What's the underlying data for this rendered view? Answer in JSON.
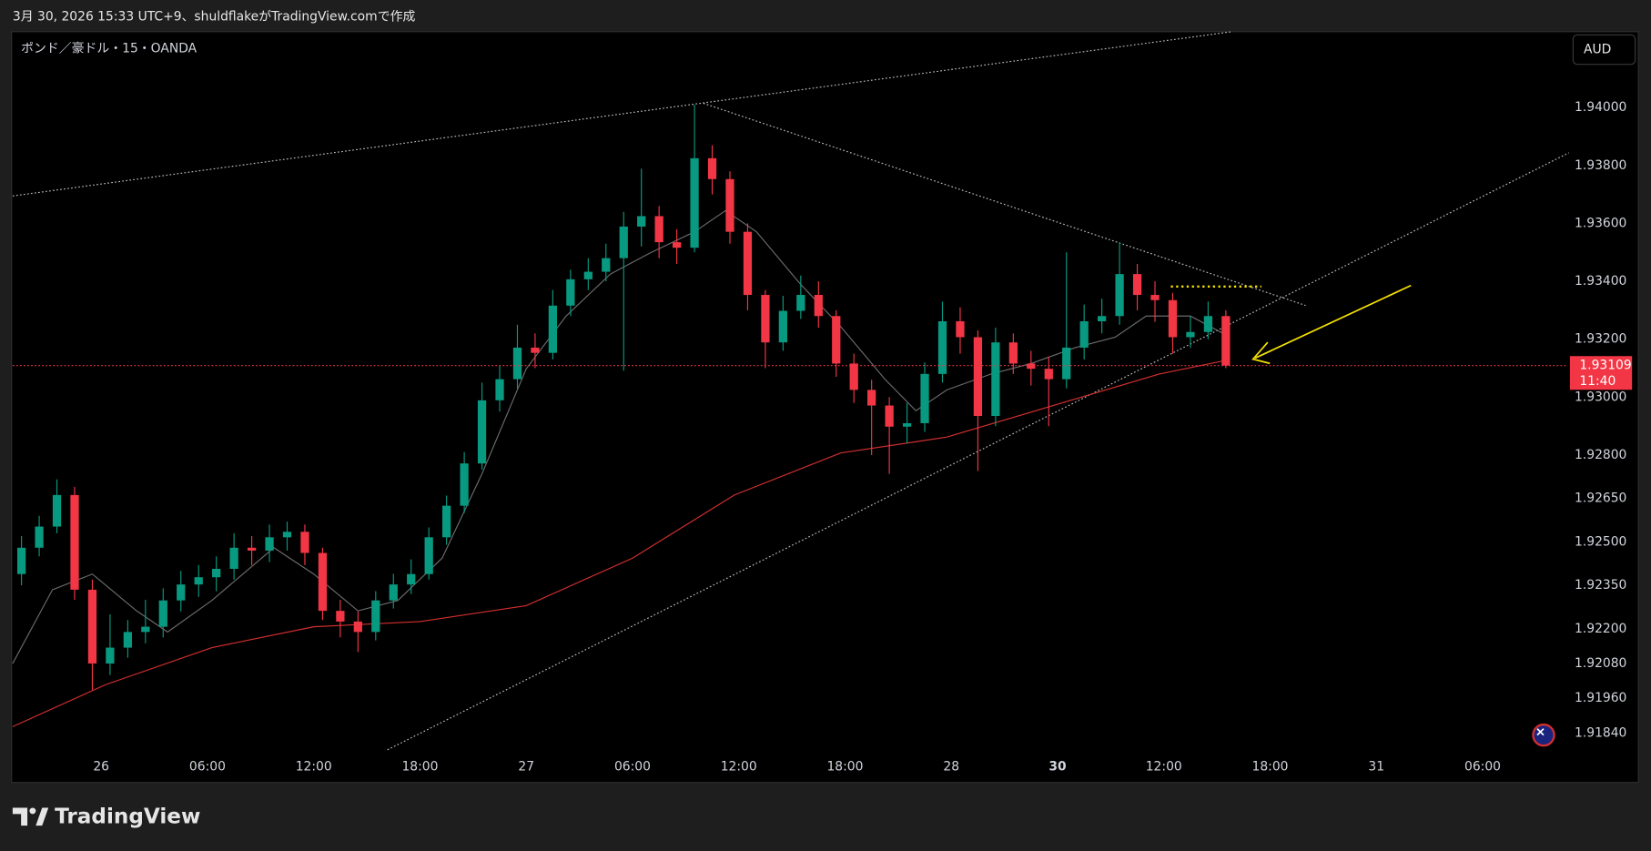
{
  "header": {
    "caption": "3月 30, 2026 15:33 UTC+9、shuldflakeがTradingView.comで作成"
  },
  "footer": {
    "brand": "TradingView"
  },
  "chart_data": {
    "type": "candlestick",
    "title": "ポンド／豪ドル・15・OANDA",
    "currency": "AUD",
    "up_color": "#089981",
    "down_color": "#f23645",
    "grid": false,
    "xlim": [
      0,
      351
    ],
    "ylim": [
      1.91673,
      1.94262
    ],
    "xticks": [
      {
        "value": 20,
        "label": "26"
      },
      {
        "value": 44,
        "label": "06:00"
      },
      {
        "value": 68,
        "label": "12:00"
      },
      {
        "value": 92,
        "label": "18:00"
      },
      {
        "value": 116,
        "label": "27"
      },
      {
        "value": 140,
        "label": "06:00"
      },
      {
        "value": 164,
        "label": "12:00"
      },
      {
        "value": 188,
        "label": "18:00"
      },
      {
        "value": 212,
        "label": "28"
      },
      {
        "value": 236,
        "label": "30",
        "bold": true
      },
      {
        "value": 260,
        "label": "12:00"
      },
      {
        "value": 284,
        "label": "18:00"
      },
      {
        "value": 308,
        "label": "31"
      },
      {
        "value": 332,
        "label": "06:00"
      }
    ],
    "yticks": [
      {
        "value": 1.94,
        "label": "1.94000"
      },
      {
        "value": 1.938,
        "label": "1.93800"
      },
      {
        "value": 1.936,
        "label": "1.93600"
      },
      {
        "value": 1.934,
        "label": "1.93400"
      },
      {
        "value": 1.932,
        "label": "1.93200"
      },
      {
        "value": 1.93,
        "label": "1.93000"
      },
      {
        "value": 1.928,
        "label": "1.92800"
      },
      {
        "value": 1.9265,
        "label": "1.92650"
      },
      {
        "value": 1.925,
        "label": "1.92500"
      },
      {
        "value": 1.9235,
        "label": "1.92350"
      },
      {
        "value": 1.922,
        "label": "1.92200"
      },
      {
        "value": 1.9208,
        "label": "1.92080"
      },
      {
        "value": 1.9196,
        "label": "1.91960"
      },
      {
        "value": 1.9184,
        "label": "1.91840"
      }
    ],
    "x": [
      2,
      6,
      10,
      14,
      18,
      22,
      26,
      30,
      34,
      38,
      42,
      46,
      50,
      54,
      58,
      62,
      66,
      70,
      74,
      78,
      82,
      86,
      90,
      94,
      98,
      102,
      106,
      110,
      114,
      118,
      122,
      126,
      130,
      134,
      138,
      142,
      146,
      150,
      154,
      158,
      162,
      166,
      170,
      174,
      178,
      182,
      186,
      190,
      194,
      198,
      202,
      206,
      210,
      214,
      218,
      222,
      226,
      230,
      234,
      238,
      242,
      246,
      250,
      254,
      258,
      262,
      266,
      270,
      274
    ],
    "open": [
      1.92389,
      1.9248,
      1.92553,
      1.92662,
      1.92335,
      1.9208,
      1.92135,
      1.92189,
      1.92207,
      1.92298,
      1.92353,
      1.92378,
      1.92407,
      1.9248,
      1.9247,
      1.92516,
      1.92535,
      1.92462,
      1.92262,
      1.92225,
      1.92189,
      1.92298,
      1.92353,
      1.92389,
      1.92516,
      1.92625,
      1.92771,
      1.92989,
      1.93062,
      1.93171,
      1.93153,
      1.93316,
      1.93407,
      1.93433,
      1.9348,
      1.93589,
      1.93625,
      1.93535,
      1.93516,
      1.93825,
      1.93753,
      1.93571,
      1.93353,
      1.93189,
      1.93298,
      1.93353,
      1.9328,
      1.93116,
      1.93025,
      1.92971,
      1.92898,
      1.9291,
      1.9308,
      1.93262,
      1.93207,
      1.92935,
      1.93189,
      1.93116,
      1.93098,
      1.93062,
      1.93171,
      1.93262,
      1.9328,
      1.93425,
      1.93353,
      1.93335,
      1.93207,
      1.93225,
      1.9328
    ],
    "high": [
      1.9252,
      1.9259,
      1.92716,
      1.9269,
      1.9237,
      1.9225,
      1.9223,
      1.923,
      1.9234,
      1.924,
      1.9242,
      1.9245,
      1.9253,
      1.9252,
      1.9256,
      1.9257,
      1.9256,
      1.9248,
      1.923,
      1.9226,
      1.9233,
      1.9239,
      1.9244,
      1.9255,
      1.9266,
      1.9281,
      1.9305,
      1.9311,
      1.9325,
      1.9322,
      1.9337,
      1.9344,
      1.9348,
      1.9353,
      1.9364,
      1.93789,
      1.9366,
      1.9358,
      1.9401,
      1.9387,
      1.9378,
      1.936,
      1.9337,
      1.9335,
      1.9342,
      1.934,
      1.933,
      1.9315,
      1.9306,
      1.93,
      1.9298,
      1.9312,
      1.9333,
      1.9331,
      1.9323,
      1.9324,
      1.9322,
      1.9316,
      1.9314,
      1.935,
      1.9332,
      1.9334,
      1.93535,
      1.9346,
      1.934,
      1.9336,
      1.9328,
      1.9333,
      1.933
    ],
    "low": [
      1.9235,
      1.9245,
      1.9253,
      1.923,
      1.91989,
      1.9204,
      1.921,
      1.9215,
      1.9217,
      1.9226,
      1.9231,
      1.9233,
      1.9237,
      1.9242,
      1.9243,
      1.9247,
      1.9242,
      1.9223,
      1.9217,
      1.9212,
      1.9216,
      1.9227,
      1.9232,
      1.9237,
      1.9249,
      1.926,
      1.9275,
      1.9295,
      1.9303,
      1.931,
      1.9313,
      1.9328,
      1.9337,
      1.934,
      1.93091,
      1.9352,
      1.9348,
      1.9346,
      1.935,
      1.937,
      1.9353,
      1.933,
      1.931,
      1.9316,
      1.9327,
      1.9324,
      1.9307,
      1.9298,
      1.928,
      1.92735,
      1.9284,
      1.9288,
      1.9305,
      1.9315,
      1.92745,
      1.929,
      1.9308,
      1.9304,
      1.929,
      1.9303,
      1.9313,
      1.9322,
      1.9325,
      1.933,
      1.9326,
      1.9315,
      1.9317,
      1.932,
      1.931
    ],
    "close": [
      1.9248,
      1.92553,
      1.92662,
      1.92335,
      1.9208,
      1.92135,
      1.92189,
      1.92207,
      1.92298,
      1.92353,
      1.92378,
      1.92407,
      1.9248,
      1.9247,
      1.92516,
      1.92535,
      1.92462,
      1.92262,
      1.92225,
      1.92189,
      1.92298,
      1.92353,
      1.92389,
      1.92516,
      1.92625,
      1.92771,
      1.92989,
      1.93062,
      1.93171,
      1.93153,
      1.93316,
      1.93407,
      1.93433,
      1.9348,
      1.93589,
      1.93625,
      1.93535,
      1.93516,
      1.93825,
      1.93753,
      1.93571,
      1.93353,
      1.93189,
      1.93298,
      1.93353,
      1.9328,
      1.93116,
      1.93025,
      1.92971,
      1.92898,
      1.9291,
      1.9308,
      1.93262,
      1.93207,
      1.92935,
      1.93189,
      1.93116,
      1.93098,
      1.93062,
      1.93171,
      1.93262,
      1.9328,
      1.93425,
      1.93353,
      1.93335,
      1.93207,
      1.93225,
      1.9328,
      1.93109
    ],
    "overlays": [
      {
        "color": "#6b6b6b",
        "x": [
          0,
          9,
          18,
          28,
          35,
          45,
          59,
          68,
          78,
          87,
          97,
          106,
          116,
          125,
          135,
          144,
          154,
          161,
          168,
          178,
          187,
          197,
          204,
          211,
          221,
          230,
          240,
          249,
          256,
          266,
          274
        ],
        "values": [
          1.9208,
          1.92335,
          1.92389,
          1.92262,
          1.92189,
          1.92298,
          1.9248,
          1.92389,
          1.92262,
          1.92298,
          1.92444,
          1.92735,
          1.93098,
          1.9328,
          1.93425,
          1.93498,
          1.93571,
          1.93644,
          1.93571,
          1.93389,
          1.93244,
          1.93062,
          1.92953,
          1.93025,
          1.9308,
          1.93116,
          1.93171,
          1.93207,
          1.9328,
          1.9328,
          1.93215
        ]
      },
      {
        "color": "#d32f2f",
        "x": [
          0,
          21,
          45,
          68,
          92,
          116,
          140,
          163,
          187,
          211,
          235,
          259,
          274
        ],
        "values": [
          1.91862,
          1.92007,
          1.92135,
          1.92207,
          1.92225,
          1.9228,
          1.92444,
          1.92662,
          1.92807,
          1.92862,
          1.92971,
          1.9308,
          1.93127
        ]
      }
    ],
    "last_price": 1.93109,
    "countdown": "11:40"
  }
}
